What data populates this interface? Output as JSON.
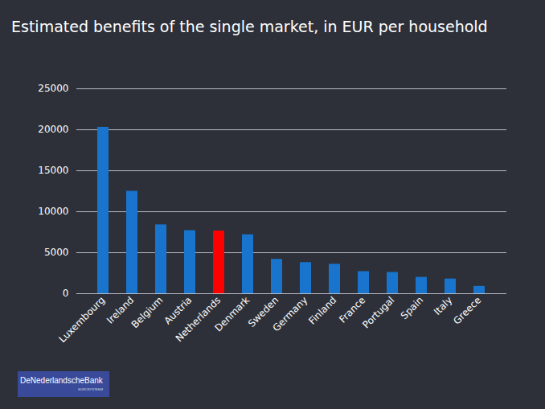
{
  "chart_data": {
    "type": "bar",
    "title": "Estimated benefits of the single market, in EUR per household",
    "categories": [
      "Luxembourg",
      "Ireland",
      "Belgium",
      "Austria",
      "Netherlands",
      "Denmark",
      "Sweden",
      "Germany",
      "Finland",
      "France",
      "Portugal",
      "Spain",
      "Italy",
      "Greece"
    ],
    "values": [
      20300,
      12500,
      8400,
      7700,
      7650,
      7200,
      4200,
      3800,
      3600,
      2700,
      2600,
      2000,
      1800,
      900
    ],
    "colors": [
      "#1874cd",
      "#1874cd",
      "#1874cd",
      "#1874cd",
      "#ff0000",
      "#1874cd",
      "#1874cd",
      "#1874cd",
      "#1874cd",
      "#1874cd",
      "#1874cd",
      "#1874cd",
      "#1874cd",
      "#1874cd"
    ],
    "ylim": [
      0,
      25000
    ],
    "yticks": [
      0,
      5000,
      10000,
      15000,
      20000,
      25000
    ],
    "grid": true,
    "annotations": [
      "DeNederlandscheBank",
      "EUROSYSTEEM"
    ]
  }
}
